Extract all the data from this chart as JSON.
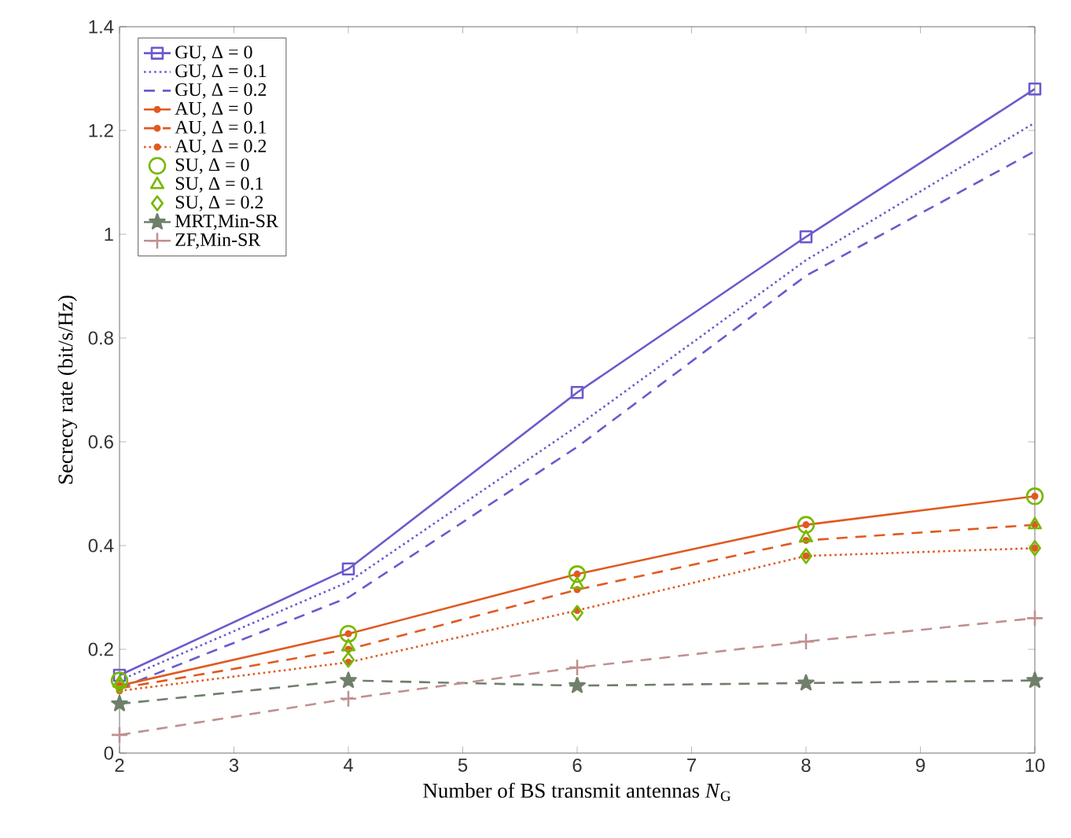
{
  "chart_data": {
    "type": "line",
    "xlabel": "Number of BS transmit antennas *N*$_{G}$",
    "ylabel": "Secrecy rate (bit/s/Hz)",
    "x": [
      2,
      4,
      6,
      8,
      10
    ],
    "xlim": [
      2,
      10
    ],
    "xticks": [
      2,
      3,
      4,
      5,
      6,
      7,
      8,
      9,
      10
    ],
    "ylim": [
      0,
      1.4
    ],
    "yticks": [
      0,
      0.2,
      0.4,
      0.6,
      0.8,
      1,
      1.2,
      1.4
    ],
    "grid": false,
    "legend": "top left",
    "series": [
      {
        "name": "GU, Δ = 0",
        "color": "#6a5acd",
        "marker": "square",
        "line_style": "solid",
        "values": [
          0.15,
          0.355,
          0.695,
          0.995,
          1.28
        ]
      },
      {
        "name": "GU, Δ = 0.1",
        "color": "#6a5acd",
        "marker": "none",
        "line_style": "dotted",
        "values": [
          0.14,
          0.33,
          0.63,
          0.95,
          1.215
        ]
      },
      {
        "name": "GU, Δ = 0.2",
        "color": "#6a5acd",
        "marker": "none",
        "line_style": "dashed",
        "values": [
          0.125,
          0.3,
          0.59,
          0.92,
          1.16
        ]
      },
      {
        "name": "AU, Δ = 0",
        "color": "#e05a20",
        "marker": "circle",
        "line_style": "solid",
        "values": [
          0.13,
          0.23,
          0.345,
          0.44,
          0.495
        ]
      },
      {
        "name": "AU, Δ = 0.1",
        "color": "#e05a20",
        "marker": "circle",
        "line_style": "dashed",
        "values": [
          0.125,
          0.2,
          0.315,
          0.41,
          0.44
        ]
      },
      {
        "name": "AU, Δ = 0.2",
        "color": "#e05a20",
        "marker": "circle",
        "line_style": "dotted",
        "values": [
          0.12,
          0.175,
          0.275,
          0.38,
          0.395
        ]
      },
      {
        "name": "SU, Δ = 0",
        "type": "scatter",
        "color": "#77b800",
        "marker": "circle",
        "values": [
          0.14,
          0.23,
          0.345,
          0.44,
          0.495
        ]
      },
      {
        "name": "SU, Δ = 0.1",
        "type": "scatter",
        "color": "#77b800",
        "marker": "triangle",
        "values": [
          0.135,
          0.205,
          0.325,
          0.415,
          0.44
        ]
      },
      {
        "name": "SU, Δ = 0.2",
        "type": "scatter",
        "color": "#77b800",
        "marker": "diamond",
        "values": [
          0.13,
          0.18,
          0.27,
          0.38,
          0.395
        ]
      },
      {
        "name": "MRT,Min-SR",
        "color": "#6f7f6a",
        "marker": "star",
        "line_style": "dashed",
        "values": [
          0.095,
          0.14,
          0.13,
          0.135,
          0.14
        ]
      },
      {
        "name": "ZF,Min-SR",
        "color": "#c09090",
        "marker": "cross",
        "line_style": "dashed",
        "values": [
          0.035,
          0.105,
          0.165,
          0.215,
          0.26
        ]
      }
    ]
  }
}
